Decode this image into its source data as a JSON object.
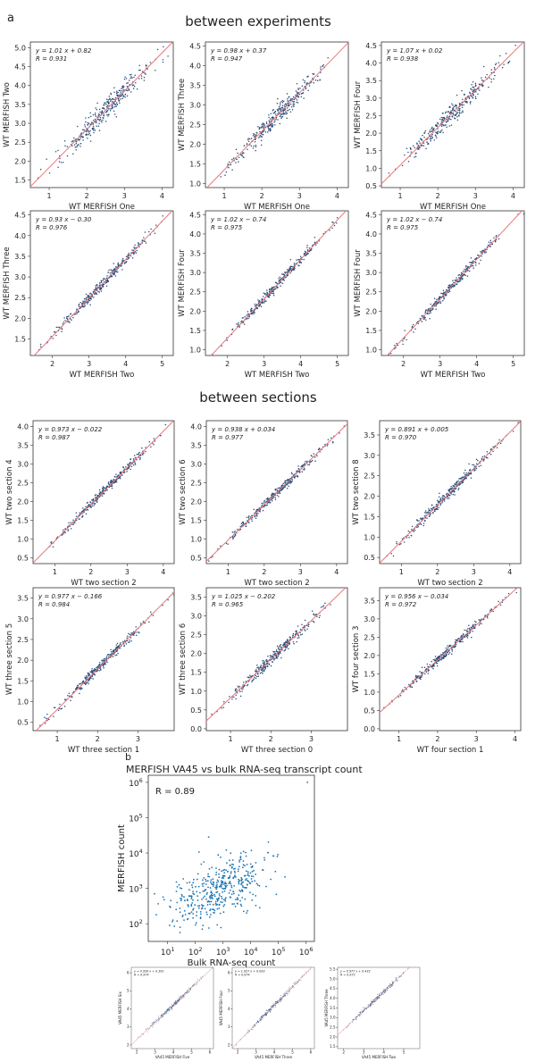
{
  "figure": {
    "panel_a_label": "a",
    "panel_b_label": "b",
    "section_titles": [
      "between experiments",
      "between sections"
    ],
    "main_title": "MERFISH VA45 vs bulk RNA-seq transcript count"
  },
  "colors": {
    "points": "#2a4d7a",
    "fit_line": "#e8797b",
    "hex_points": "#1f77b4",
    "frame": "#333333"
  },
  "chart_data": [
    {
      "type": "scatter",
      "section": "between experiments",
      "xlabel": "WT MERFISH One",
      "ylabel": "WT MERFISH Two",
      "equation": "y = 1.01 x + 0.82",
      "r_label": "R = 0.931",
      "slope": 1.01,
      "intercept": 0.82,
      "r": 0.931,
      "xlim": [
        0.5,
        4.3
      ],
      "ylim": [
        1.3,
        5.15
      ],
      "xticks": [
        1,
        2,
        3,
        4
      ],
      "yticks": [
        1.5,
        2.0,
        2.5,
        3.0,
        3.5,
        4.0,
        4.5,
        5.0
      ]
    },
    {
      "type": "scatter",
      "section": "between experiments",
      "xlabel": "WT MERFISH One",
      "ylabel": "WT MERFISH Three",
      "equation": "y = 0.98 x + 0.37",
      "r_label": "R = 0.947",
      "slope": 0.98,
      "intercept": 0.37,
      "r": 0.947,
      "xlim": [
        0.5,
        4.3
      ],
      "ylim": [
        0.9,
        4.6
      ],
      "xticks": [
        1,
        2,
        3,
        4
      ],
      "yticks": [
        1.0,
        1.5,
        2.0,
        2.5,
        3.0,
        3.5,
        4.0,
        4.5
      ]
    },
    {
      "type": "scatter",
      "section": "between experiments",
      "xlabel": "WT MERFISH One",
      "ylabel": "WT MERFISH Four",
      "equation": "y = 1.07 x + 0.02",
      "r_label": "R = 0.938",
      "slope": 1.07,
      "intercept": 0.02,
      "r": 0.938,
      "xlim": [
        0.5,
        4.3
      ],
      "ylim": [
        0.45,
        4.6
      ],
      "xticks": [
        1,
        2,
        3,
        4
      ],
      "yticks": [
        0.5,
        1.0,
        1.5,
        2.0,
        2.5,
        3.0,
        3.5,
        4.0,
        4.5
      ]
    },
    {
      "type": "scatter",
      "section": "between experiments",
      "xlabel": "WT MERFISH Two",
      "ylabel": "WT MERFISH Three",
      "equation": "y = 0.93 x − 0.30",
      "r_label": "R = 0.976",
      "slope": 0.93,
      "intercept": -0.3,
      "r": 0.976,
      "xlim": [
        1.4,
        5.3
      ],
      "ylim": [
        1.1,
        4.6
      ],
      "xticks": [
        2,
        3,
        4,
        5
      ],
      "yticks": [
        1.5,
        2.0,
        2.5,
        3.0,
        3.5,
        4.0,
        4.5
      ]
    },
    {
      "type": "scatter",
      "section": "between experiments",
      "xlabel": "WT MERFISH Two",
      "ylabel": "WT MERFISH Four",
      "equation": "y = 1.02 x − 0.74",
      "r_label": "R = 0.975",
      "slope": 1.02,
      "intercept": -0.74,
      "r": 0.975,
      "xlim": [
        1.4,
        5.3
      ],
      "ylim": [
        0.85,
        4.6
      ],
      "xticks": [
        2,
        3,
        4,
        5
      ],
      "yticks": [
        1.0,
        1.5,
        2.0,
        2.5,
        3.0,
        3.5,
        4.0,
        4.5
      ]
    },
    {
      "type": "scatter",
      "section": "between experiments",
      "xlabel": "WT MERFISH Two",
      "ylabel": "WT MERFISH Four",
      "equation": "y = 1.02 x − 0.74",
      "r_label": "R = 0.975",
      "slope": 1.02,
      "intercept": -0.74,
      "r": 0.975,
      "xlim": [
        1.4,
        5.3
      ],
      "ylim": [
        0.85,
        4.6
      ],
      "xticks": [
        2,
        3,
        4,
        5
      ],
      "yticks": [
        1.0,
        1.5,
        2.0,
        2.5,
        3.0,
        3.5,
        4.0,
        4.5
      ]
    },
    {
      "type": "scatter",
      "section": "between sections",
      "xlabel": "WT two section 2",
      "ylabel": "WT two section 4",
      "equation": "y = 0.973 x − 0.022",
      "r_label": "R = 0.987",
      "slope": 0.973,
      "intercept": -0.022,
      "r": 0.987,
      "xlim": [
        0.4,
        4.3
      ],
      "ylim": [
        0.35,
        4.15
      ],
      "xticks": [
        1,
        2,
        3,
        4
      ],
      "yticks": [
        0.5,
        1.0,
        1.5,
        2.0,
        2.5,
        3.0,
        3.5,
        4.0
      ]
    },
    {
      "type": "scatter",
      "section": "between sections",
      "xlabel": "WT two section 2",
      "ylabel": "WT two section 6",
      "equation": "y = 0.938 x + 0.034",
      "r_label": "R = 0.977",
      "slope": 0.938,
      "intercept": 0.034,
      "r": 0.977,
      "xlim": [
        0.4,
        4.3
      ],
      "ylim": [
        0.35,
        4.15
      ],
      "xticks": [
        1,
        2,
        3,
        4
      ],
      "yticks": [
        0.5,
        1.0,
        1.5,
        2.0,
        2.5,
        3.0,
        3.5,
        4.0
      ]
    },
    {
      "type": "scatter",
      "section": "between sections",
      "xlabel": "WT two section 2",
      "ylabel": "WT two section 8",
      "equation": "y = 0.891 x + 0.005",
      "r_label": "R = 0.970",
      "slope": 0.891,
      "intercept": 0.005,
      "r": 0.97,
      "xlim": [
        0.4,
        4.3
      ],
      "ylim": [
        0.35,
        3.85
      ],
      "xticks": [
        1,
        2,
        3,
        4
      ],
      "yticks": [
        0.5,
        1.0,
        1.5,
        2.0,
        2.5,
        3.0,
        3.5
      ]
    },
    {
      "type": "scatter",
      "section": "between sections",
      "xlabel": "WT three section 1",
      "ylabel": "WT three section 5",
      "equation": "y = 0.977 x − 0.166",
      "r_label": "R = 0.984",
      "slope": 0.977,
      "intercept": -0.166,
      "r": 0.984,
      "xlim": [
        0.4,
        3.9
      ],
      "ylim": [
        0.3,
        3.75
      ],
      "xticks": [
        1,
        2,
        3
      ],
      "yticks": [
        0.5,
        1.0,
        1.5,
        2.0,
        2.5,
        3.0,
        3.5
      ]
    },
    {
      "type": "scatter",
      "section": "between sections",
      "xlabel": "WT three section 0",
      "ylabel": "WT three section 6",
      "equation": "y = 1.025 x − 0.202",
      "r_label": "R = 0.965",
      "slope": 1.025,
      "intercept": -0.202,
      "r": 0.965,
      "xlim": [
        0.4,
        3.9
      ],
      "ylim": [
        -0.05,
        3.75
      ],
      "xticks": [
        1,
        2,
        3
      ],
      "yticks": [
        0.0,
        0.5,
        1.0,
        1.5,
        2.0,
        2.5,
        3.0,
        3.5
      ]
    },
    {
      "type": "scatter",
      "section": "between sections",
      "xlabel": "WT four section 1",
      "ylabel": "WT four section 3",
      "equation": "y = 0.956 x − 0.034",
      "r_label": "R = 0.972",
      "slope": 0.956,
      "intercept": -0.034,
      "r": 0.972,
      "xlim": [
        0.5,
        4.15
      ],
      "ylim": [
        -0.05,
        3.85
      ],
      "xticks": [
        1,
        2,
        3,
        4
      ],
      "yticks": [
        0.0,
        0.5,
        1.0,
        1.5,
        2.0,
        2.5,
        3.0,
        3.5
      ]
    },
    {
      "type": "scatter",
      "scale": "log",
      "title": "MERFISH VA45 vs bulk RNA-seq transcript count",
      "xlabel": "Bulk RNA-seq count",
      "ylabel": "MERFISH count",
      "r_label": "R = 0.89",
      "r": 0.89,
      "xlim_log10": [
        0.3,
        6.3
      ],
      "ylim_log10": [
        1.5,
        6.2
      ],
      "xtick_exponents": [
        1,
        2,
        3,
        4,
        5,
        6
      ],
      "ytick_exponents": [
        2,
        3,
        4,
        5,
        6
      ]
    },
    {
      "type": "scatter",
      "section": "VA45",
      "xlabel": "VA45 MERFISH Five",
      "ylabel": "VA45 MERFISH Six",
      "equation": "y = 0.958 x + 0.381",
      "r_label": "R = 0.974",
      "slope": 0.958,
      "intercept": 0.381,
      "r": 0.974,
      "xlim": [
        1.7,
        6.2
      ],
      "ylim": [
        1.8,
        6.3
      ],
      "xticks": [
        2,
        3,
        4,
        5,
        6
      ],
      "yticks": [
        2,
        3,
        4,
        5,
        6
      ]
    },
    {
      "type": "scatter",
      "section": "VA45",
      "xlabel": "VA45 MERFISH Three",
      "ylabel": "VA45 MERFISH Four",
      "equation": "y = 1.027 x + 0.083",
      "r_label": "R = 0.974",
      "slope": 1.027,
      "intercept": 0.083,
      "r": 0.974,
      "xlim": [
        1.7,
        6.2
      ],
      "ylim": [
        1.8,
        6.3
      ],
      "xticks": [
        2,
        3,
        4,
        5,
        6
      ],
      "yticks": [
        2,
        3,
        4,
        5,
        6
      ]
    },
    {
      "type": "scatter",
      "section": "VA45",
      "xlabel": "VA45 MERFISH Two",
      "ylabel": "VA45 MERFISH Three",
      "equation": "y = 0.977 x + 0.432",
      "r_label": "R = 0.975",
      "slope": 0.977,
      "intercept": 0.432,
      "r": 0.975,
      "xlim": [
        1.7,
        5.8
      ],
      "ylim": [
        1.4,
        5.6
      ],
      "xticks": [
        2,
        3,
        4,
        5
      ],
      "yticks": [
        1.5,
        2.0,
        2.5,
        3.0,
        3.5,
        4.0,
        4.5,
        5.0,
        5.5
      ]
    }
  ]
}
